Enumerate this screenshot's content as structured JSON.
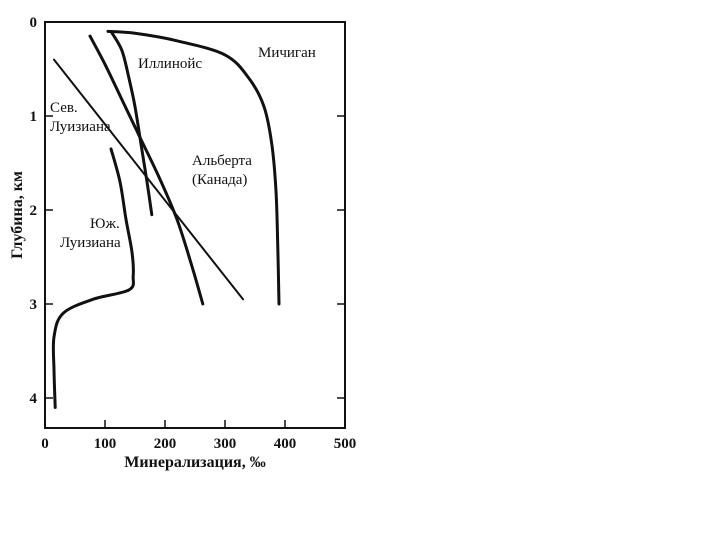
{
  "chart_data": {
    "type": "line",
    "xlabel": "Минерализация, ‰",
    "ylabel": "Глубина, км",
    "xlim": [
      0,
      500
    ],
    "ylim": [
      0,
      4.2
    ],
    "y_inverted": true,
    "x_ticks": [
      "0",
      "100",
      "200",
      "300",
      "400",
      "500"
    ],
    "y_ticks": [
      "0",
      "1",
      "2",
      "3",
      "4"
    ],
    "grid": false,
    "series": [
      {
        "name": "Мичиган",
        "label_lines": [
          "Мичиган"
        ],
        "points": [
          [
            105,
            0.1
          ],
          [
            150,
            0.12
          ],
          [
            220,
            0.2
          ],
          [
            300,
            0.35
          ],
          [
            340,
            0.6
          ],
          [
            365,
            0.9
          ],
          [
            378,
            1.3
          ],
          [
            385,
            1.8
          ],
          [
            388,
            2.4
          ],
          [
            390,
            3.0
          ]
        ]
      },
      {
        "name": "Иллинойс",
        "label_lines": [
          "Иллинойс"
        ],
        "points": [
          [
            110,
            0.1
          ],
          [
            128,
            0.3
          ],
          [
            140,
            0.6
          ],
          [
            150,
            0.9
          ],
          [
            160,
            1.3
          ],
          [
            170,
            1.7
          ],
          [
            178,
            2.05
          ]
        ]
      },
      {
        "name": "Альберта (Канада)",
        "label_lines": [
          "Альберта",
          "(Канада)"
        ],
        "points": [
          [
            75,
            0.15
          ],
          [
            100,
            0.45
          ],
          [
            130,
            0.85
          ],
          [
            160,
            1.25
          ],
          [
            190,
            1.65
          ],
          [
            220,
            2.1
          ],
          [
            245,
            2.6
          ],
          [
            263,
            3.0
          ]
        ]
      },
      {
        "name": "Сев. Луизиана",
        "label_lines": [
          "Сев.",
          "Луизиана"
        ],
        "points": [
          [
            15,
            0.4
          ],
          [
            330,
            2.95
          ]
        ]
      },
      {
        "name": "Юж. Луизиана",
        "label_lines": [
          "Юж.",
          "Луизиана"
        ],
        "points": [
          [
            110,
            1.35
          ],
          [
            125,
            1.7
          ],
          [
            135,
            2.1
          ],
          [
            145,
            2.45
          ],
          [
            147,
            2.7
          ],
          [
            140,
            2.85
          ],
          [
            80,
            2.95
          ],
          [
            30,
            3.1
          ],
          [
            15,
            3.35
          ],
          [
            15,
            3.7
          ],
          [
            17,
            4.1
          ]
        ]
      }
    ]
  }
}
